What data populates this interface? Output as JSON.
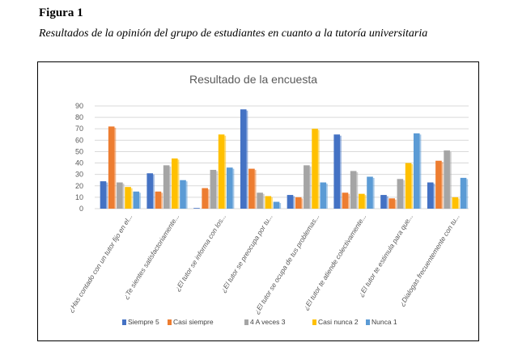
{
  "figure": {
    "label": "Figura 1",
    "caption": "Resultados de la opinión del grupo de estudiantes en cuanto a la tutoría universitaria"
  },
  "chart_data": {
    "type": "bar",
    "title": "Resultado de la encuesta",
    "xlabel": "",
    "ylabel": "",
    "ylim": [
      0,
      90
    ],
    "yticks": [
      0,
      10,
      20,
      30,
      40,
      50,
      60,
      70,
      80,
      90
    ],
    "grid": true,
    "legend_position": "bottom",
    "categories": [
      "¿Has contado con un tutor fijo en el...",
      "¿Te sientes satisfactoriamente...",
      "¿El tutor se informa con los...",
      "¿El tutor se preocupa por tu...",
      "¿El tutor se ocupa de tus problemas...",
      "¿El tutor te atiende colectivamente...",
      "¿El tutor te estimula para que...",
      "¿Dialogas frecuentemente con tu..."
    ],
    "series": [
      {
        "name": "Siempre 5",
        "color": "#4472C4",
        "values": [
          24,
          31,
          0,
          87,
          12,
          65,
          12,
          23
        ]
      },
      {
        "name": "Casi siempre",
        "color": "#ED7D31",
        "values": [
          72,
          15,
          18,
          35,
          10,
          14,
          9,
          42
        ]
      },
      {
        "name": "4 A veces 3",
        "color": "#A5A5A5",
        "values": [
          23,
          38,
          34,
          14,
          38,
          33,
          26,
          51
        ]
      },
      {
        "name": "Casi nunca 2",
        "color": "#FFC000",
        "values": [
          19,
          44,
          65,
          11,
          70,
          13,
          40,
          10
        ]
      },
      {
        "name": "Nunca 1",
        "color": "#5B9BD5",
        "values": [
          15,
          25,
          36,
          6,
          23,
          28,
          66,
          27
        ]
      }
    ]
  }
}
